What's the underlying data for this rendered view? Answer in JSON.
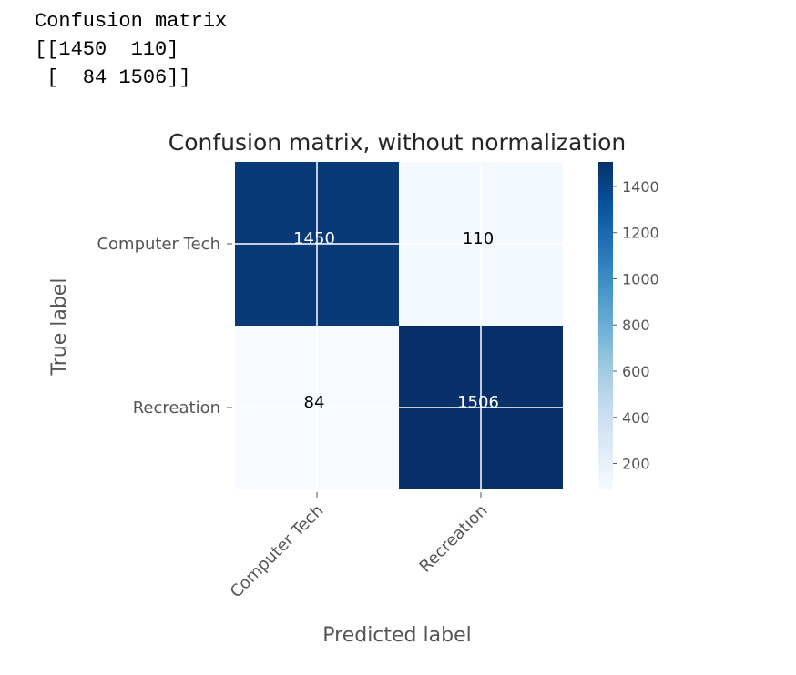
{
  "console": {
    "line1": "Confusion matrix",
    "line2": "[[1450  110]",
    "line3": " [  84 1506]]"
  },
  "chart_data": {
    "type": "heatmap",
    "title": "Confusion matrix, without normalization",
    "xlabel": "Predicted label",
    "ylabel": "True label",
    "x_categories": [
      "Computer Tech",
      "Recreation"
    ],
    "y_categories": [
      "Computer Tech",
      "Recreation"
    ],
    "values": [
      [
        1450,
        110
      ],
      [
        84,
        1506
      ]
    ],
    "colormap": "Blues",
    "colorbar": {
      "range": [
        84,
        1506
      ],
      "ticks": [
        200,
        400,
        600,
        800,
        1000,
        1200,
        1400
      ]
    },
    "grid": true,
    "colors": {
      "low": "#f7fbff",
      "high": "#08306b",
      "text_dark": "#000000",
      "text_light": "#ffffff"
    }
  }
}
